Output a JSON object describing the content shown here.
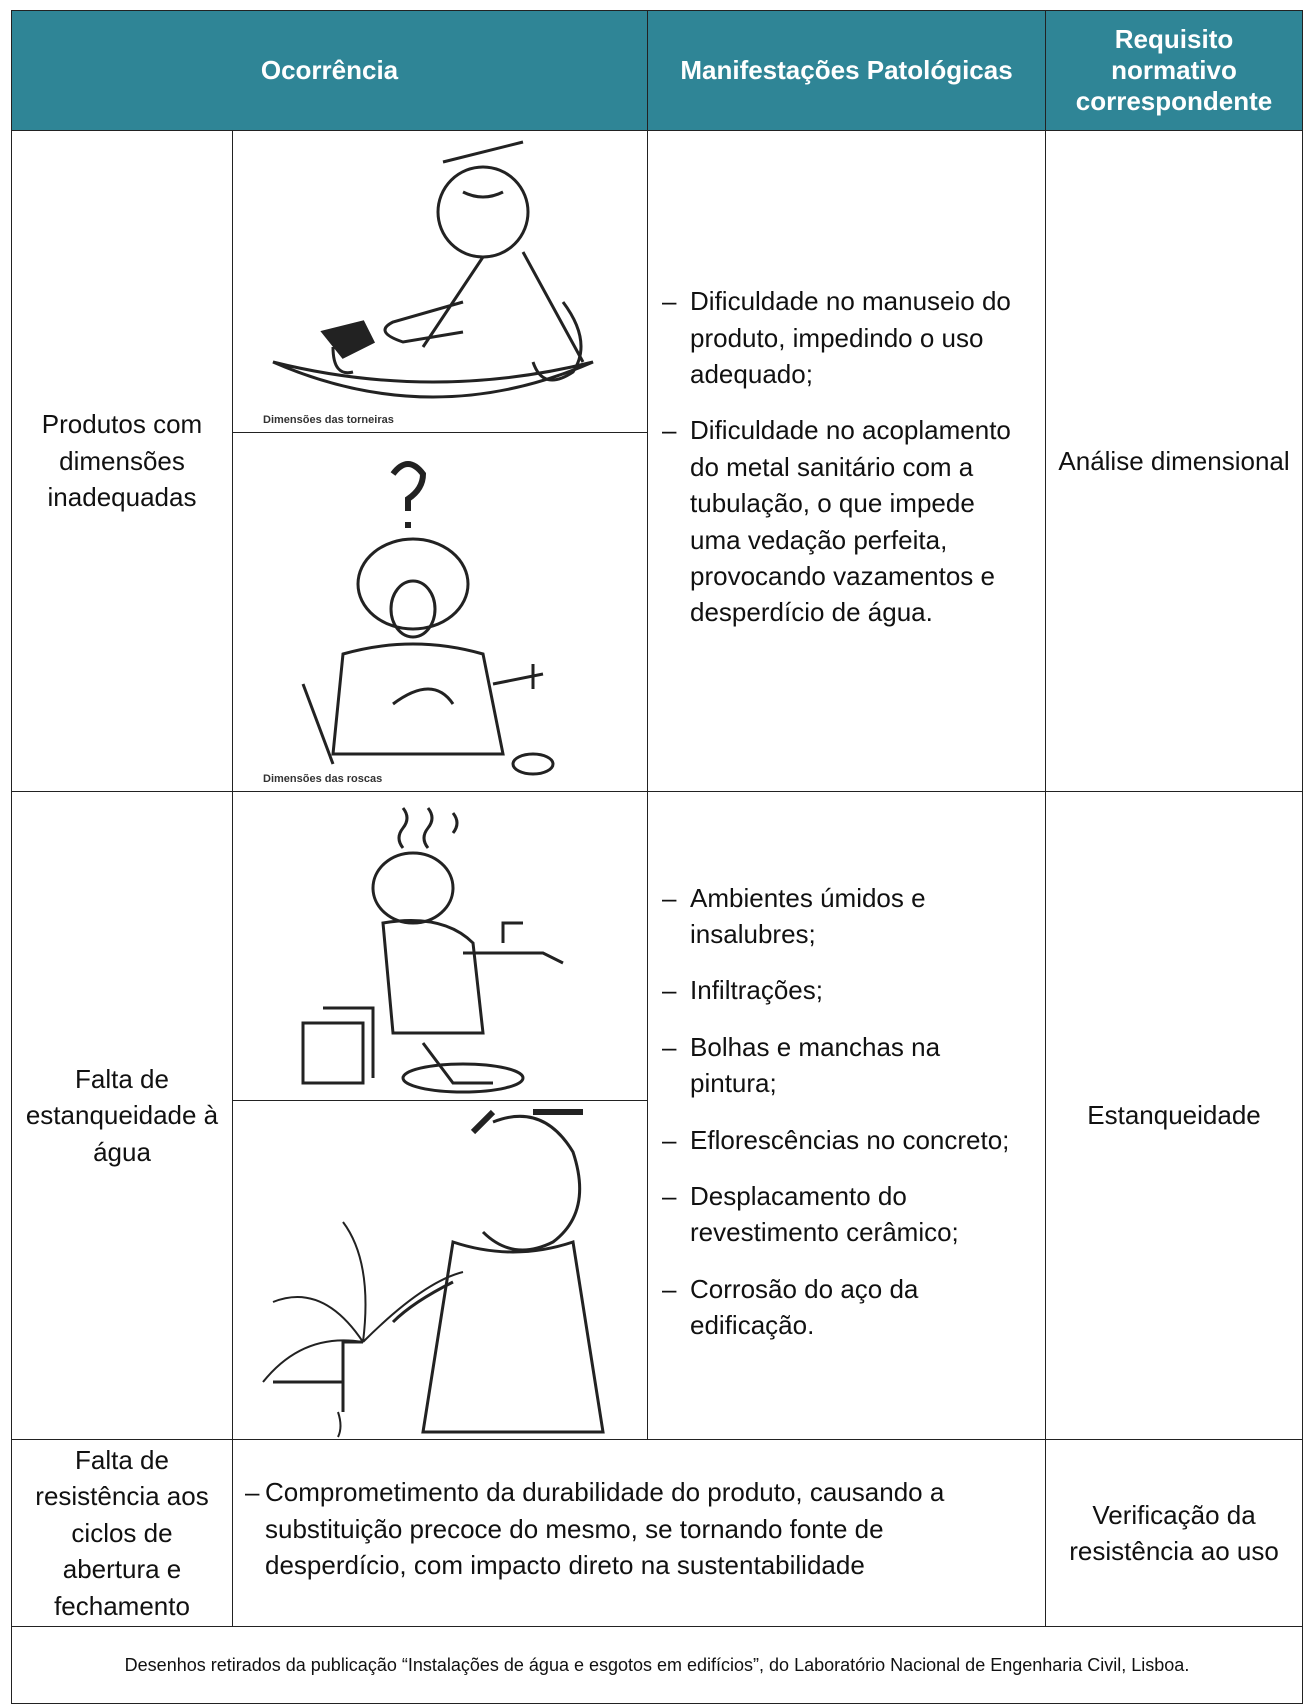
{
  "header": {
    "columns": [
      "Ocorrência",
      "Manifestações Patológicas",
      "Requisito normativo correspondente"
    ]
  },
  "list_marker": "–",
  "rows": [
    {
      "occurrence": "Produtos com dimensões inadequadas",
      "images": [
        {
          "caption": "Dimensões das torneiras"
        },
        {
          "caption": "Dimensões das roscas"
        }
      ],
      "manifestations": [
        "Dificuldade no manuseio do produto, impedindo o uso adequado;",
        "Dificuldade no acoplamento do metal sanitário com a tubulação, o que impede uma vedação perfeita, provocando vazamentos e desperdício de água."
      ],
      "requirement": "Análise dimensional"
    },
    {
      "occurrence": "Falta de estanqueidade à água",
      "manifestations": [
        "Ambientes úmidos e insalubres;",
        "Infiltrações;",
        "Bolhas e manchas na pintura;",
        "Eflorescências no concreto;",
        "Desplacamento do revestimento cerâmico;",
        "Corrosão do aço da edificação."
      ],
      "requirement": "Estanqueidade"
    },
    {
      "occurrence": "Falta de resistência aos ciclos de abertura e fechamento",
      "manifestations": [
        "Comprometimento da durabilidade do produto, causando a substituição precoce do mesmo, se tornando fonte de desperdício, com impacto direto na sustentabilidade"
      ],
      "requirement": "Verificação da resistência ao uso"
    }
  ],
  "footer": "Desenhos retirados da publicação “Instalações de água e esgotos em edifícios”, do Laboratório Nacional de Engenharia Civil, Lisboa."
}
